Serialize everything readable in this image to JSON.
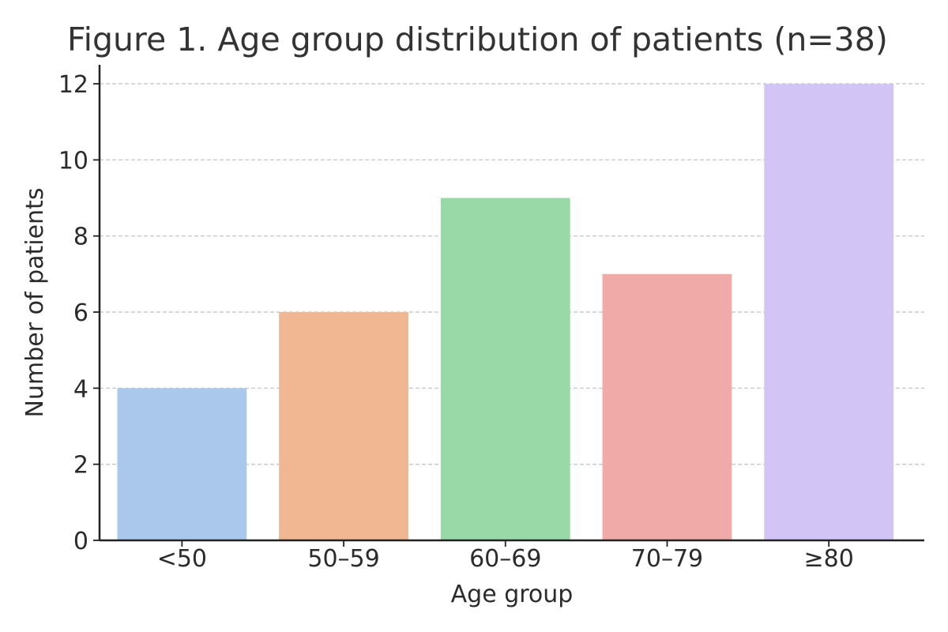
{
  "chart_data": {
    "type": "bar",
    "title": "Figure 1. Age group distribution of patients (n=38)",
    "xlabel": "Age group",
    "ylabel": "Number of patients",
    "categories": [
      "<50",
      "50–59",
      "60–69",
      "70–79",
      "≥80"
    ],
    "values": [
      4,
      6,
      9,
      7,
      12
    ],
    "colors": [
      "#a9c8eb",
      "#f0b792",
      "#99d9a7",
      "#f0aaa8",
      "#d2c5f5"
    ],
    "ylim": [
      0,
      12.5
    ],
    "yticks": [
      0,
      2,
      4,
      6,
      8,
      10,
      12
    ],
    "grid": true,
    "legend": false
  }
}
